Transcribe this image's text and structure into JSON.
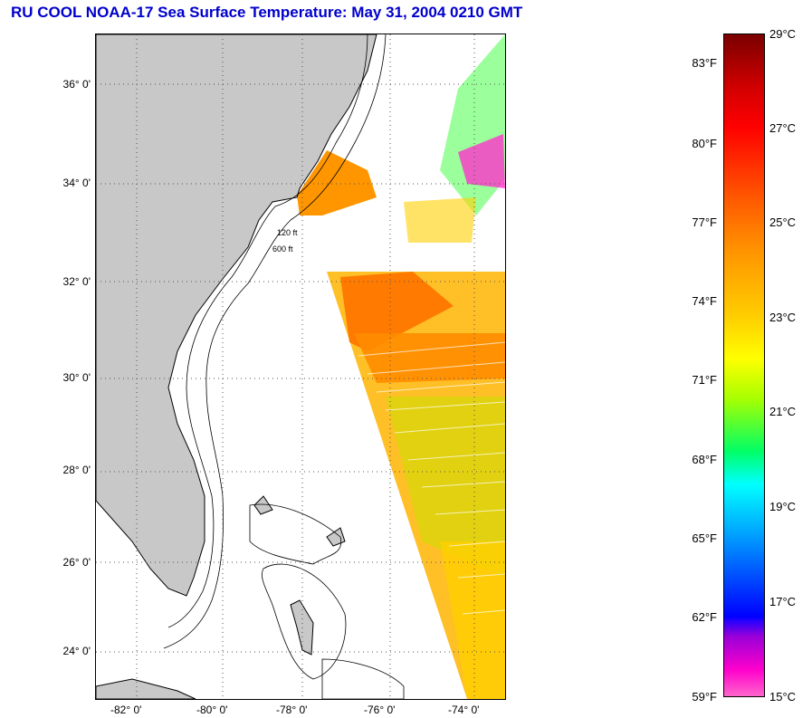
{
  "title": "RU COOL  NOAA-17  Sea Surface Temperature:  May 31, 2004 0210 GMT",
  "map": {
    "lat_labels": [
      "36° 0'",
      "34° 0'",
      "32° 0'",
      "30° 0'",
      "28° 0'",
      "26° 0'",
      "24° 0'"
    ],
    "lon_labels": [
      "-82° 0'",
      "-80° 0'",
      "-78° 0'",
      "-76° 0'",
      "-74° 0'"
    ],
    "contour_labels": [
      "120 ft",
      "600 ft"
    ],
    "land_color": "#c8c8c8",
    "cloud_color": "#ffffff"
  },
  "colorbar": {
    "fahrenheit": [
      "83°F",
      "80°F",
      "77°F",
      "74°F",
      "71°F",
      "68°F",
      "65°F",
      "62°F",
      "59°F"
    ],
    "celsius": [
      "29°C",
      "27°C",
      "25°C",
      "23°C",
      "21°C",
      "19°C",
      "17°C",
      "15°C"
    ],
    "range_celsius": [
      15,
      29
    ]
  }
}
